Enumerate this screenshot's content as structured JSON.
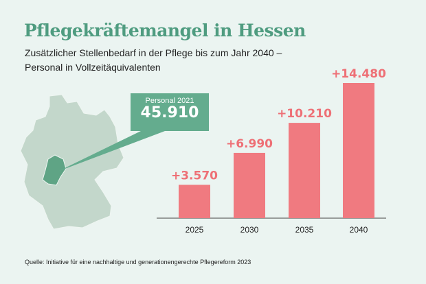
{
  "title": "Pflegekräftemangel in Hessen",
  "subtitle_line1": "Zusätzlicher Stellenbedarf in der Pflege bis zum Jahr 2040 –",
  "subtitle_line2": "Personal in Vollzeitäquivalenten",
  "callout": {
    "label": "Personal 2021",
    "value": "45.910"
  },
  "source": "Quelle: Initiative für eine nachhaltige und generationengerechte Pflegereform 2023",
  "colors": {
    "bar": "#f07a80",
    "label": "#ee7076",
    "accent": "#64ac8e",
    "map": "#c3d7cb"
  },
  "chart_data": {
    "type": "bar",
    "categories": [
      "2025",
      "2030",
      "2035",
      "2040"
    ],
    "values": [
      3570,
      6990,
      10210,
      14480
    ],
    "data_labels": [
      "+3.570",
      "+6.990",
      "+10.210",
      "+14.480"
    ],
    "title": "Zusätzlicher Stellenbedarf in der Pflege bis zum Jahr 2040",
    "ylim": [
      0,
      14480
    ]
  }
}
